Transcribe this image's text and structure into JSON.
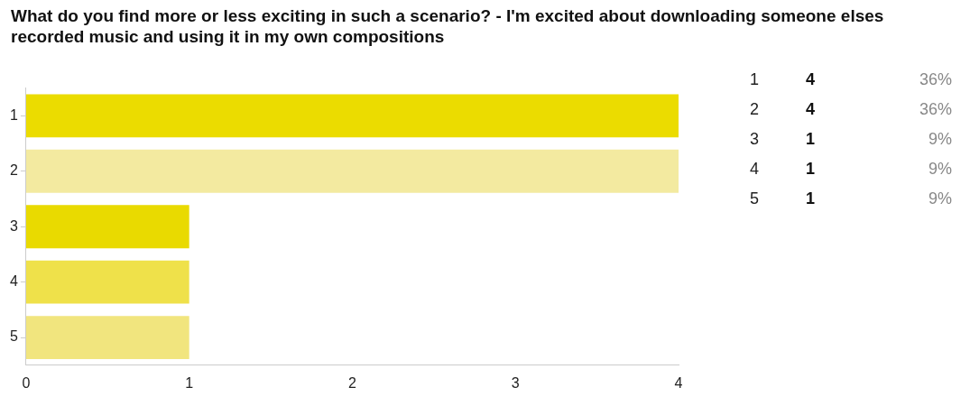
{
  "chart_data": {
    "type": "bar",
    "orientation": "horizontal",
    "title": "What do you find more or less exciting in such a scenario? - I'm excited about downloading someone elses recorded music and using it in my own compositions",
    "categories": [
      "1",
      "2",
      "3",
      "4",
      "5"
    ],
    "values": [
      4,
      4,
      1,
      1,
      1
    ],
    "colors": [
      "#ebdc00",
      "#f3eaa0",
      "#e9da00",
      "#efe14a",
      "#f1e57e"
    ],
    "annotations": [
      "36%",
      "36%",
      "9%",
      "9%",
      "9%"
    ],
    "xlim": [
      0,
      4
    ],
    "xticks": [
      0,
      1,
      2,
      3,
      4
    ],
    "grid": false,
    "legend": false
  }
}
